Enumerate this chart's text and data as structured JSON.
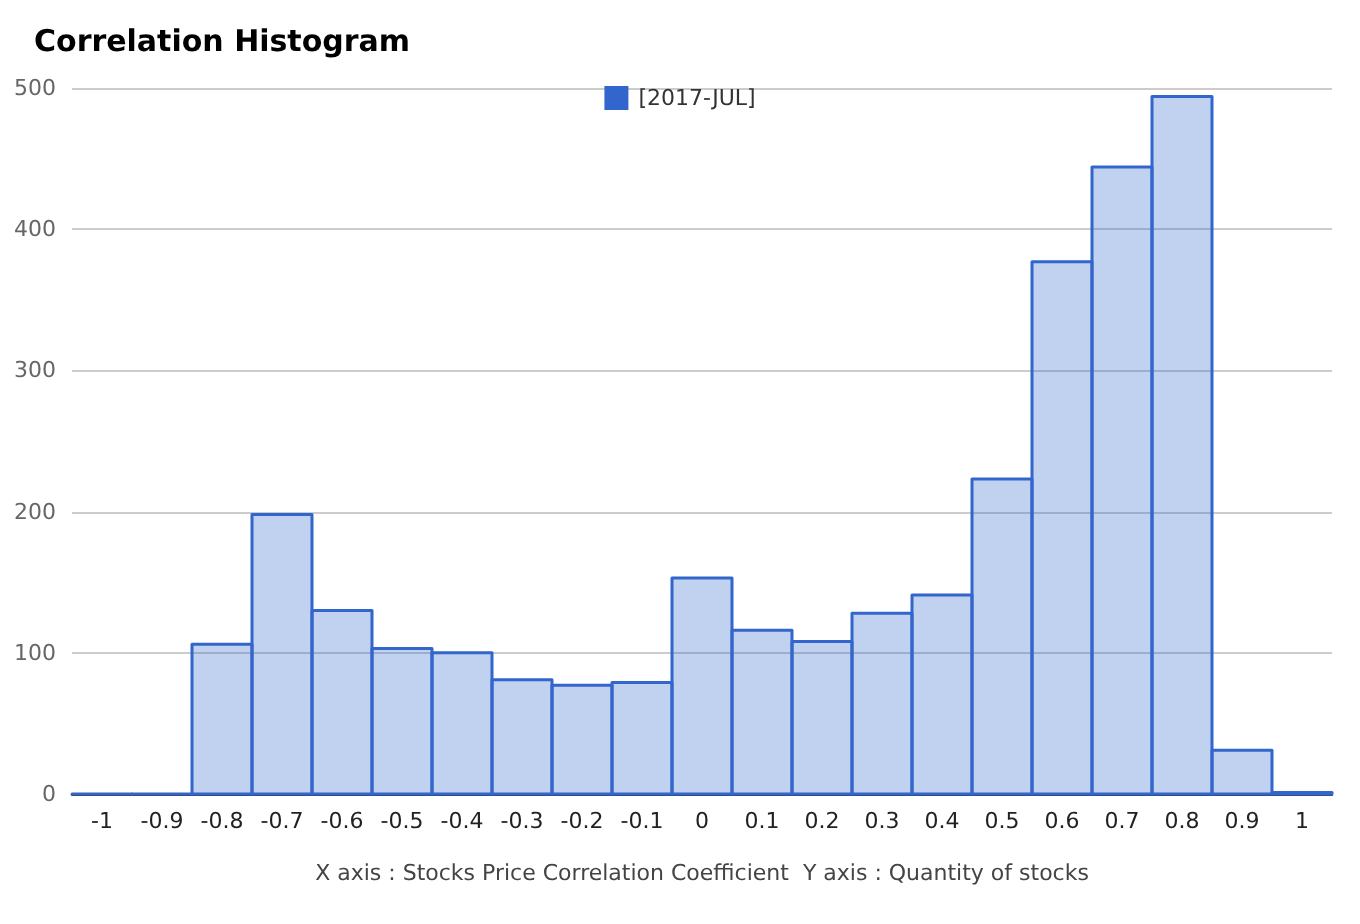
{
  "chart_data": {
    "type": "histogram",
    "title": "Correlation Histogram",
    "xlabel": "X axis : Stocks Price Correlation Coefficient  Y axis : Quantity of stocks",
    "bins": [
      -1.05,
      -0.95,
      -0.85,
      -0.75,
      -0.65,
      -0.55,
      -0.45,
      -0.35,
      -0.25,
      -0.15,
      -0.05,
      0.05,
      0.15,
      0.25,
      0.35,
      0.45,
      0.55,
      0.65,
      0.75,
      0.85,
      0.95,
      1.05
    ],
    "series": [
      {
        "name": "[2017-JUL]",
        "color": "#3366cc",
        "values": [
          0,
          0,
          106,
          198,
          130,
          103,
          100,
          81,
          77,
          79,
          153,
          116,
          108,
          128,
          141,
          223,
          377,
          444,
          494,
          31,
          1
        ]
      }
    ],
    "xlim": [
      -1.05,
      1.05
    ],
    "xticks": [
      -1,
      -0.9,
      -0.8,
      -0.7,
      -0.6,
      -0.5,
      -0.4,
      -0.3,
      -0.2,
      -0.1,
      0,
      0.1,
      0.2,
      0.3,
      0.4,
      0.5,
      0.6,
      0.7,
      0.8,
      0.9,
      1
    ],
    "ylim": [
      0,
      500
    ],
    "yticks": [
      0,
      100,
      200,
      300,
      400,
      500
    ],
    "grid": "y",
    "legend": "top"
  }
}
